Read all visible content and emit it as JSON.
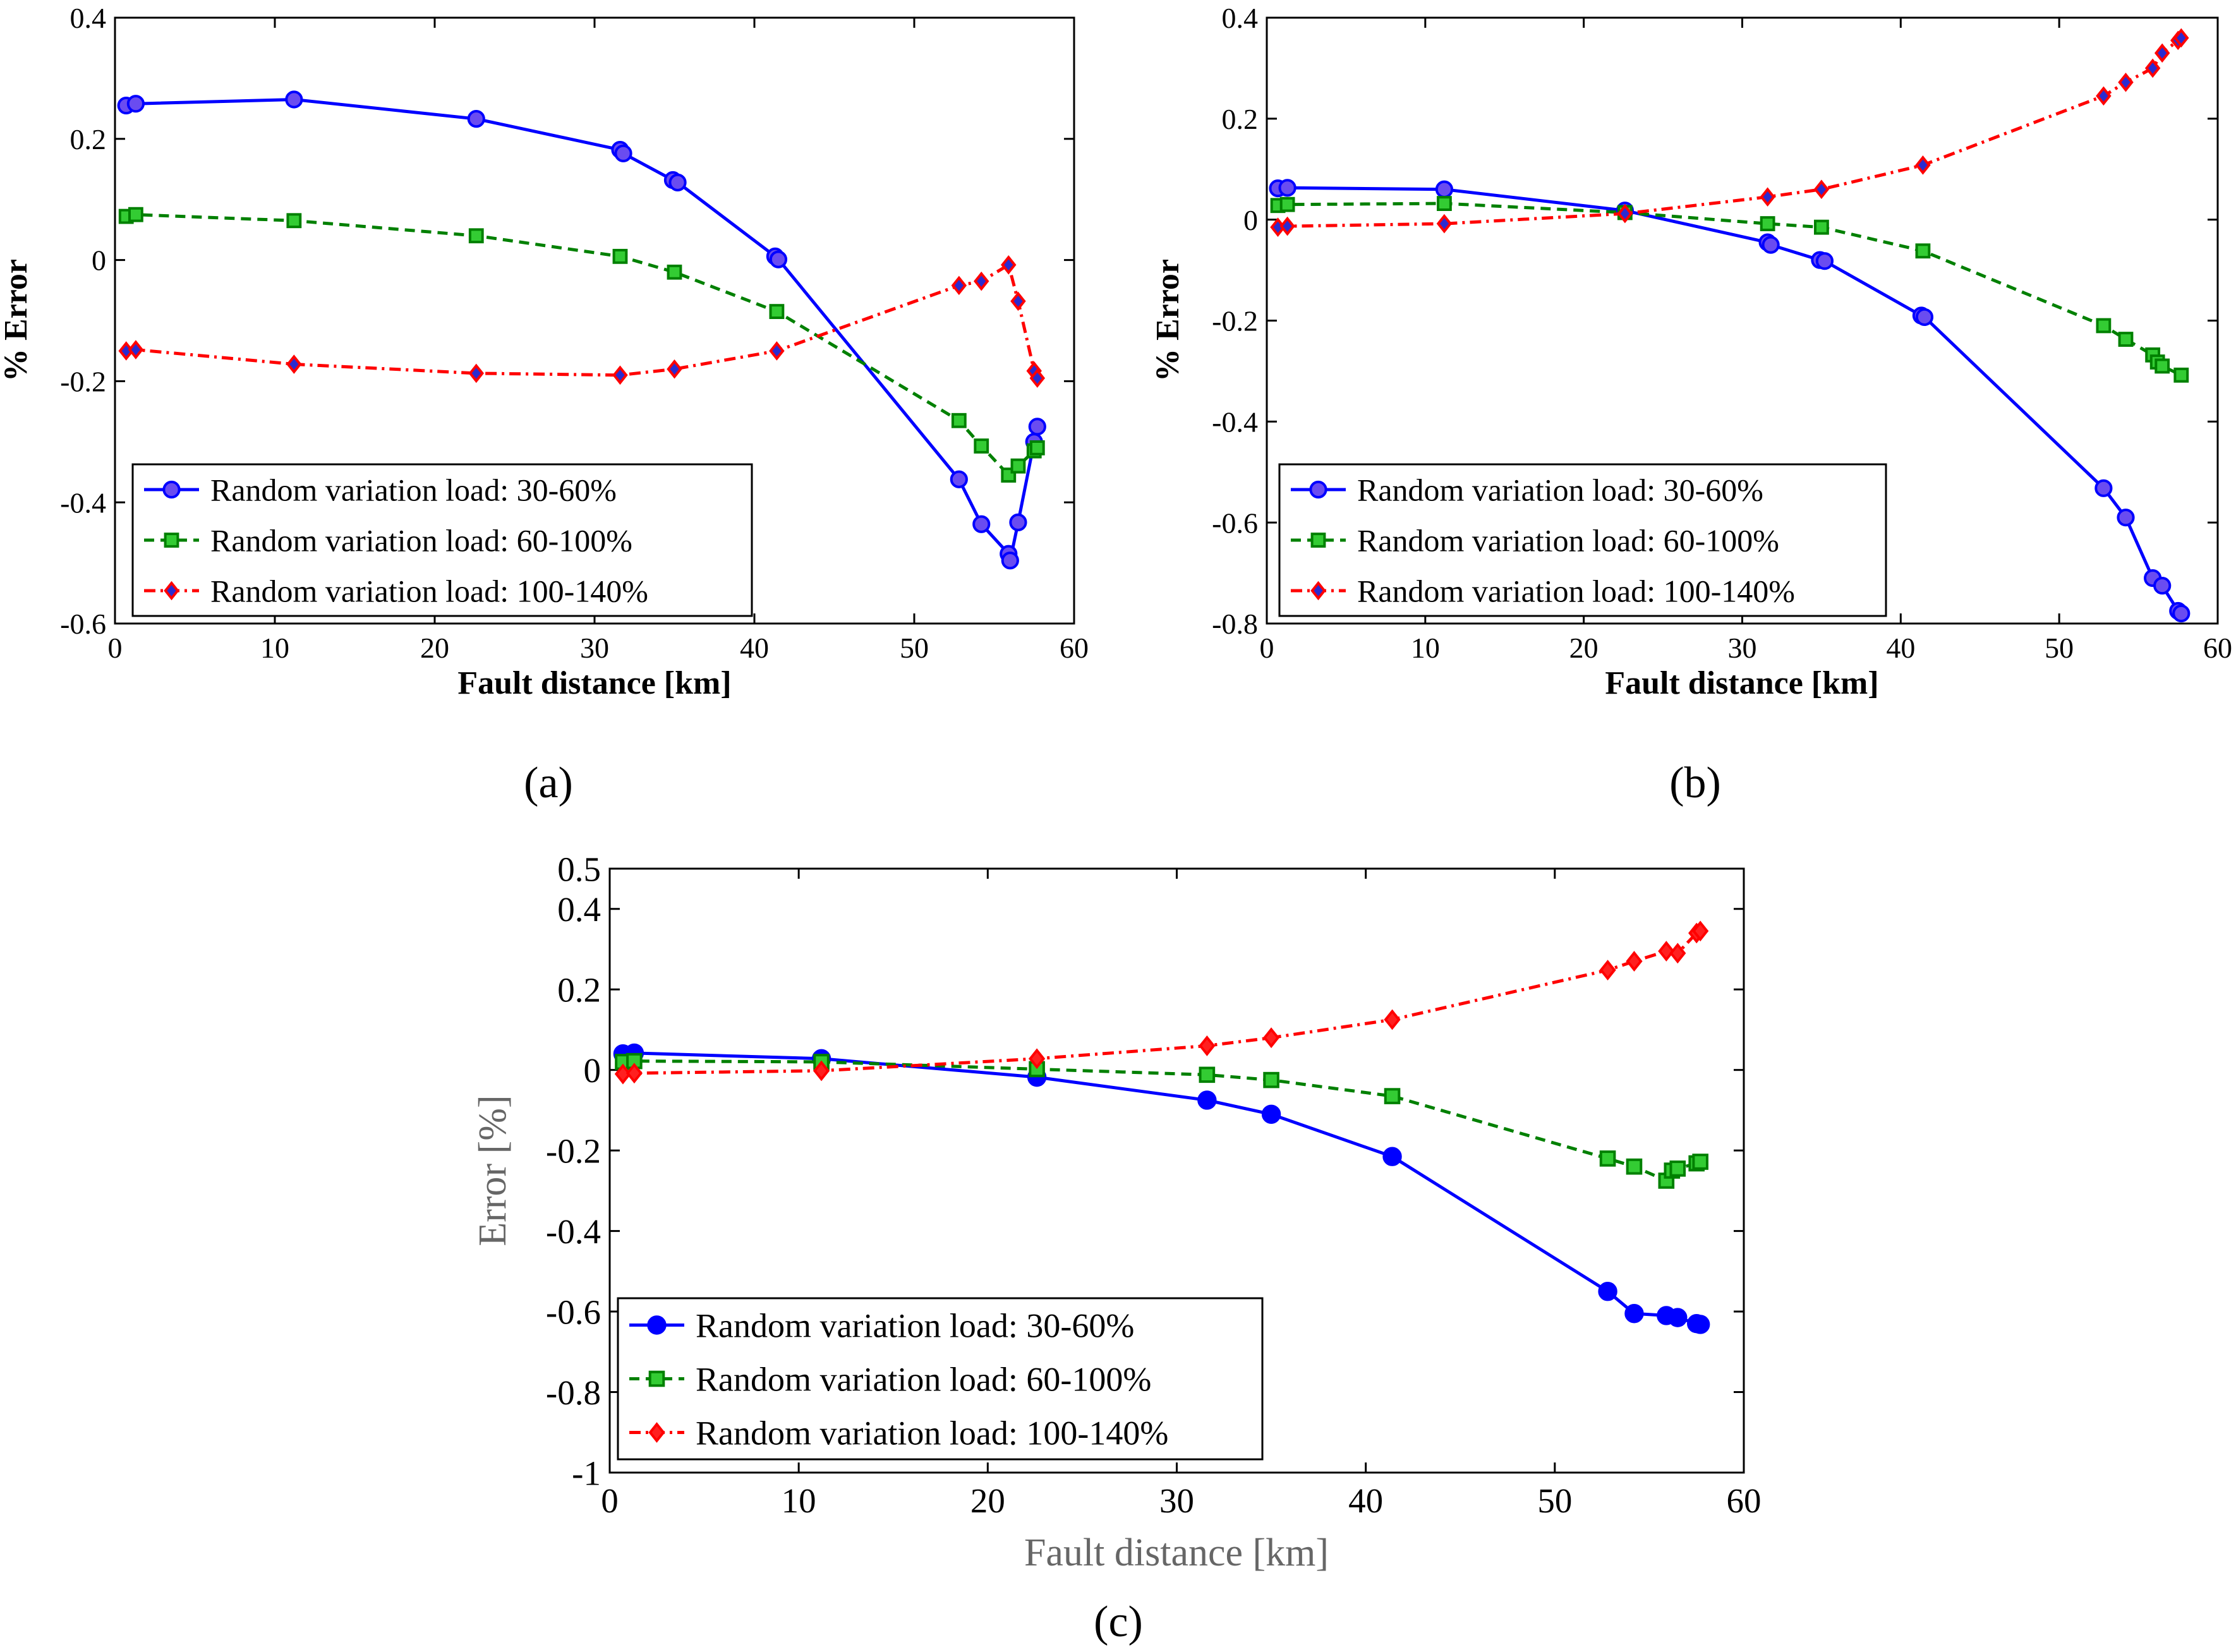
{
  "captions": {
    "a": "(a)",
    "b": "(b)",
    "c": "(c)"
  },
  "legend_labels": [
    "Random variation load: 30-60%",
    "Random variation load: 60-100%",
    "Random variation load: 100-140%"
  ],
  "colors": {
    "series1": "#0000ff",
    "series1_fill": "#6a4cf0",
    "series2": "#008000",
    "series2_fill": "#33cc33",
    "series3": "#ff0000",
    "series3_fill": "#2b2bd0",
    "series3_fill_c": "#ff2020"
  },
  "chart_data": [
    {
      "id": "a",
      "type": "line",
      "title": "",
      "xlabel": "Fault distance [km]",
      "ylabel": "% Error",
      "xlim": [
        0,
        60
      ],
      "ylim": [
        -0.6,
        0.4
      ],
      "xticks": [
        0,
        10,
        20,
        30,
        40,
        50,
        60
      ],
      "yticks": [
        -0.6,
        -0.4,
        -0.2,
        0,
        0.2,
        0.4
      ],
      "ytick_labels": [
        "-0.6",
        "-0.4",
        "-0.2",
        "0",
        "0.2",
        "0.4"
      ],
      "legend_position": "bottom-left",
      "series": [
        {
          "name": "Random variation load: 30-60%",
          "x": [
            0.7,
            1.3,
            11.2,
            22.6,
            31.6,
            31.8,
            34.9,
            35.2,
            41.3,
            41.5,
            52.8,
            54.2,
            55.9,
            56.0,
            56.5,
            57.5,
            57.7
          ],
          "y": [
            0.255,
            0.258,
            0.265,
            0.233,
            0.182,
            0.176,
            0.132,
            0.128,
            0.006,
            0.001,
            -0.362,
            -0.436,
            -0.485,
            -0.496,
            -0.433,
            -0.3,
            -0.275
          ]
        },
        {
          "name": "Random variation load: 60-100%",
          "x": [
            0.7,
            1.3,
            11.2,
            22.6,
            31.6,
            35.0,
            41.4,
            52.8,
            54.2,
            55.9,
            56.5,
            57.5,
            57.7
          ],
          "y": [
            0.072,
            0.075,
            0.065,
            0.04,
            0.006,
            -0.02,
            -0.085,
            -0.265,
            -0.307,
            -0.355,
            -0.34,
            -0.315,
            -0.31
          ]
        },
        {
          "name": "Random variation load: 100-140%",
          "x": [
            0.7,
            1.3,
            11.2,
            22.6,
            31.6,
            35.0,
            41.4,
            52.8,
            54.2,
            55.9,
            56.5,
            57.5,
            57.7
          ],
          "y": [
            -0.15,
            -0.148,
            -0.172,
            -0.187,
            -0.19,
            -0.18,
            -0.15,
            -0.042,
            -0.035,
            -0.008,
            -0.068,
            -0.183,
            -0.195
          ]
        }
      ]
    },
    {
      "id": "b",
      "type": "line",
      "title": "",
      "xlabel": "Fault distance [km]",
      "ylabel": "% Error",
      "xlim": [
        0,
        60
      ],
      "ylim": [
        -0.8,
        0.4
      ],
      "xticks": [
        0,
        10,
        20,
        30,
        40,
        50,
        60
      ],
      "yticks": [
        -0.8,
        -0.6,
        -0.4,
        -0.2,
        0,
        0.2,
        0.4
      ],
      "ytick_labels": [
        "-0.8",
        "-0.6",
        "-0.4",
        "-0.2",
        "0",
        "0.2",
        "0.4"
      ],
      "legend_position": "bottom-left",
      "series": [
        {
          "name": "Random variation load: 30-60%",
          "x": [
            0.7,
            1.3,
            11.2,
            22.6,
            31.6,
            31.8,
            34.9,
            35.2,
            41.3,
            41.5,
            52.8,
            54.2,
            55.9,
            56.5,
            57.5,
            57.7
          ],
          "y": [
            0.062,
            0.063,
            0.06,
            0.018,
            -0.045,
            -0.05,
            -0.08,
            -0.082,
            -0.19,
            -0.193,
            -0.532,
            -0.59,
            -0.71,
            -0.725,
            -0.775,
            -0.78
          ]
        },
        {
          "name": "Random variation load: 60-100%",
          "x": [
            0.7,
            1.3,
            11.2,
            22.6,
            31.6,
            35.0,
            41.4,
            52.8,
            54.2,
            55.9,
            56.2,
            56.5,
            57.7
          ],
          "y": [
            0.028,
            0.03,
            0.032,
            0.014,
            -0.008,
            -0.015,
            -0.062,
            -0.21,
            -0.237,
            -0.268,
            -0.282,
            -0.29,
            -0.308
          ]
        },
        {
          "name": "Random variation load: 100-140%",
          "x": [
            0.7,
            1.3,
            11.2,
            22.6,
            31.6,
            35.0,
            41.4,
            52.8,
            54.2,
            55.9,
            56.5,
            57.5,
            57.7
          ],
          "y": [
            -0.015,
            -0.013,
            -0.008,
            0.012,
            0.045,
            0.06,
            0.108,
            0.245,
            0.272,
            0.3,
            0.33,
            0.355,
            0.36
          ]
        }
      ]
    },
    {
      "id": "c",
      "type": "line",
      "title": "",
      "xlabel": "Fault distance [km]",
      "ylabel": "Error [%]",
      "xlim": [
        0,
        60
      ],
      "ylim": [
        -1,
        0.5
      ],
      "xticks": [
        0,
        10,
        20,
        30,
        40,
        50,
        60
      ],
      "yticks": [
        -1,
        -0.8,
        -0.6,
        -0.4,
        -0.2,
        0,
        0.2,
        0.4,
        0.5
      ],
      "ytick_labels": [
        "-1",
        "-0.8",
        "-0.6",
        "-0.4",
        "-0.2",
        "0",
        "0.2",
        "0.4",
        "0.5"
      ],
      "legend_position": "bottom-left",
      "series": [
        {
          "name": "Random variation load: 30-60%",
          "x": [
            0.7,
            1.3,
            11.2,
            22.6,
            31.6,
            35.0,
            41.4,
            52.8,
            54.2,
            55.9,
            56.5,
            57.5,
            57.7
          ],
          "y": [
            0.04,
            0.042,
            0.028,
            -0.018,
            -0.075,
            -0.11,
            -0.215,
            -0.55,
            -0.605,
            -0.61,
            -0.615,
            -0.63,
            -0.632
          ]
        },
        {
          "name": "Random variation load: 60-100%",
          "x": [
            0.7,
            1.3,
            11.2,
            22.6,
            31.6,
            35.0,
            41.4,
            52.8,
            54.2,
            55.9,
            56.2,
            56.5,
            57.5,
            57.7
          ],
          "y": [
            0.02,
            0.022,
            0.02,
            0.002,
            -0.012,
            -0.025,
            -0.065,
            -0.22,
            -0.24,
            -0.275,
            -0.25,
            -0.245,
            -0.232,
            -0.228
          ]
        },
        {
          "name": "Random variation load: 100-140%",
          "x": [
            0.7,
            1.3,
            11.2,
            22.6,
            31.6,
            35.0,
            41.4,
            52.8,
            54.2,
            55.9,
            56.5,
            57.5,
            57.7
          ],
          "y": [
            -0.01,
            -0.008,
            -0.002,
            0.028,
            0.06,
            0.08,
            0.125,
            0.248,
            0.27,
            0.295,
            0.29,
            0.34,
            0.345
          ]
        }
      ]
    }
  ]
}
